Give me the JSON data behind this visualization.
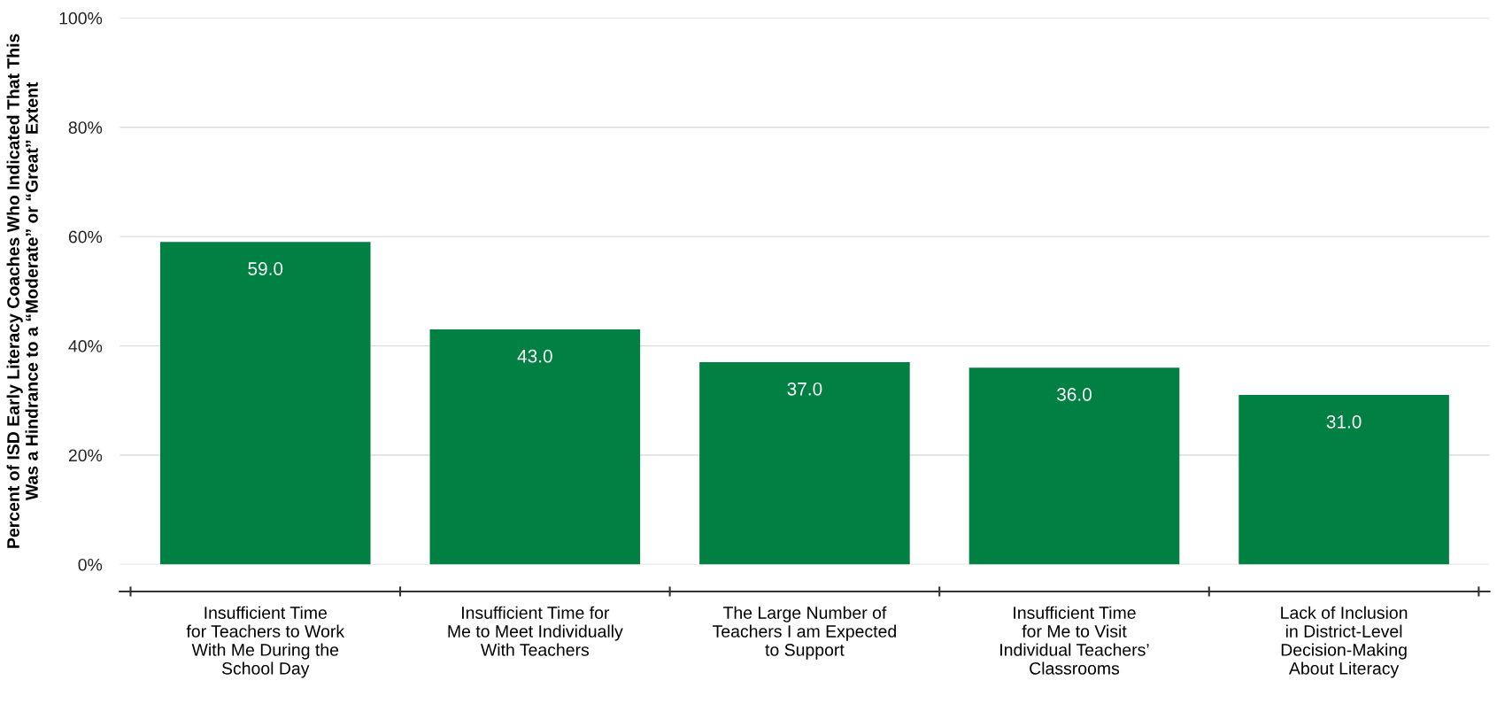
{
  "chart_data": {
    "type": "bar",
    "ylabel": "Percent of ISD Early Literacy Coaches Who Indicated That This\nWas a Hindrance to a “Moderate” or “Great” Extent",
    "categories": [
      "Insufficient Time\nfor Teachers to Work\nWith Me During the\nSchool Day",
      "Insufficient Time for\nMe to Meet Individually\nWith Teachers",
      "The Large Number of\nTeachers I am Expected\nto Support",
      "Insufficient Time\nfor Me to Visit\nIndividual Teachers’\nClassrooms",
      "Lack of Inclusion\nin District-Level\nDecision-Making\nAbout Literacy"
    ],
    "values": [
      59.0,
      43.0,
      37.0,
      36.0,
      31.0
    ],
    "value_labels": [
      "59.0",
      "43.0",
      "37.0",
      "36.0",
      "31.0"
    ],
    "color": "#008043",
    "ylim": [
      0,
      100
    ],
    "yticks": [
      {
        "value": 0,
        "label": "0%"
      },
      {
        "value": 20,
        "label": "20%"
      },
      {
        "value": 40,
        "label": "40%"
      },
      {
        "value": 60,
        "label": "60%"
      },
      {
        "value": 80,
        "label": "80%"
      },
      {
        "value": 100,
        "label": "100%"
      }
    ],
    "grid": "y",
    "legend": false
  }
}
